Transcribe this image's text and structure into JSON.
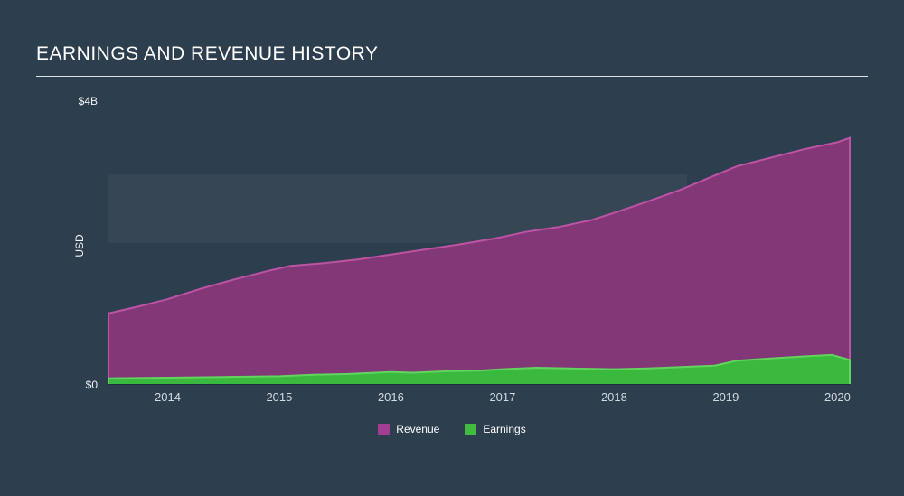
{
  "page": {
    "title": "EARNINGS AND REVENUE HISTORY"
  },
  "axis": {
    "y_max_label": "$4B",
    "y_min_label": "$0",
    "y_axis_name": "USD"
  },
  "legend": [
    {
      "label": "Revenue",
      "color": "#a23f92"
    },
    {
      "label": "Earnings",
      "color": "#41bc41"
    }
  ],
  "chart_data": {
    "type": "area",
    "title": "EARNINGS AND REVENUE HISTORY",
    "ylabel": "USD",
    "xlabel": "",
    "ylim": [
      0,
      4
    ],
    "xlim": [
      2013.47,
      2020.11
    ],
    "xticks": [
      2014,
      2015,
      2016,
      2017,
      2018,
      2019,
      2020
    ],
    "grid": false,
    "legend_position": "bottom-center",
    "units": "billions USD",
    "series": [
      {
        "name": "Revenue",
        "fill": "#823776",
        "stroke": "#bc53a4",
        "x": [
          2013.47,
          2013.75,
          2014.0,
          2014.3,
          2014.6,
          2014.9,
          2015.1,
          2015.4,
          2015.7,
          2016.0,
          2016.3,
          2016.6,
          2016.9,
          2017.0,
          2017.2,
          2017.5,
          2017.8,
          2018.0,
          2018.3,
          2018.6,
          2018.9,
          2019.1,
          2019.4,
          2019.7,
          2020.0,
          2020.11
        ],
        "y": [
          1.0,
          1.1,
          1.2,
          1.35,
          1.48,
          1.6,
          1.67,
          1.71,
          1.76,
          1.83,
          1.9,
          1.97,
          2.05,
          2.08,
          2.15,
          2.22,
          2.32,
          2.42,
          2.58,
          2.75,
          2.95,
          3.08,
          3.2,
          3.32,
          3.42,
          3.48
        ]
      },
      {
        "name": "Earnings",
        "fill": "#3bb93f",
        "stroke": "#62d55e",
        "x": [
          2013.47,
          2014.0,
          2014.5,
          2015.0,
          2015.3,
          2015.6,
          2016.0,
          2016.2,
          2016.5,
          2016.8,
          2017.0,
          2017.3,
          2017.6,
          2018.0,
          2018.3,
          2018.6,
          2018.9,
          2019.1,
          2019.4,
          2019.7,
          2019.95,
          2020.11
        ],
        "y": [
          0.08,
          0.09,
          0.1,
          0.11,
          0.13,
          0.14,
          0.17,
          0.16,
          0.18,
          0.19,
          0.21,
          0.23,
          0.22,
          0.21,
          0.22,
          0.24,
          0.26,
          0.33,
          0.36,
          0.39,
          0.41,
          0.34
        ]
      }
    ]
  }
}
